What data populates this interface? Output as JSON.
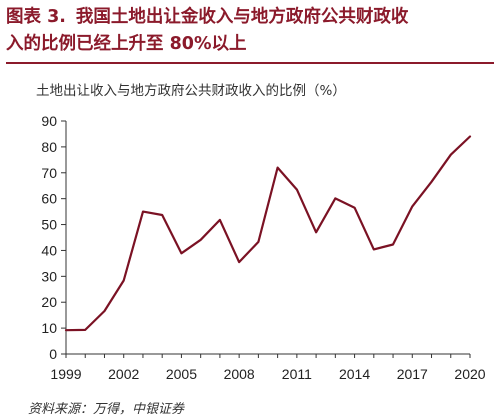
{
  "figure": {
    "label": "图表 3.",
    "title_line1": "我国土地出让金收入与地方政府公共财政收",
    "title_line2": "入的比例已经上升至 80%以上"
  },
  "source": "资料来源：万得，中银证券",
  "colors": {
    "title": "#8b1a2b",
    "line": "#7b1224",
    "axis": "#333333"
  },
  "chart_data": {
    "type": "line",
    "title": "土地出让收入与地方政府公共财政收入的比例（%）",
    "xlabel": "",
    "ylabel": "",
    "x": [
      1999,
      2000,
      2001,
      2002,
      2003,
      2004,
      2005,
      2006,
      2007,
      2008,
      2009,
      2010,
      2011,
      2012,
      2013,
      2014,
      2015,
      2016,
      2017,
      2018,
      2019,
      2020
    ],
    "series": [
      {
        "values": [
          9.2,
          9.3,
          16.6,
          28.4,
          55.0,
          53.7,
          38.9,
          44.1,
          51.8,
          35.5,
          43.3,
          72.0,
          63.5,
          47.0,
          60.1,
          56.5,
          40.4,
          42.3,
          57.0,
          66.5,
          77.0,
          84.0
        ]
      }
    ],
    "xlim": [
      1999,
      2020
    ],
    "ylim": [
      0,
      90
    ],
    "x_ticks": [
      "1999",
      "2002",
      "2005",
      "2008",
      "2011",
      "2014",
      "2017",
      "2020"
    ],
    "y_ticks": [
      "0",
      "10",
      "20",
      "30",
      "40",
      "50",
      "60",
      "70",
      "80",
      "90"
    ],
    "grid": false,
    "legend": "none"
  }
}
